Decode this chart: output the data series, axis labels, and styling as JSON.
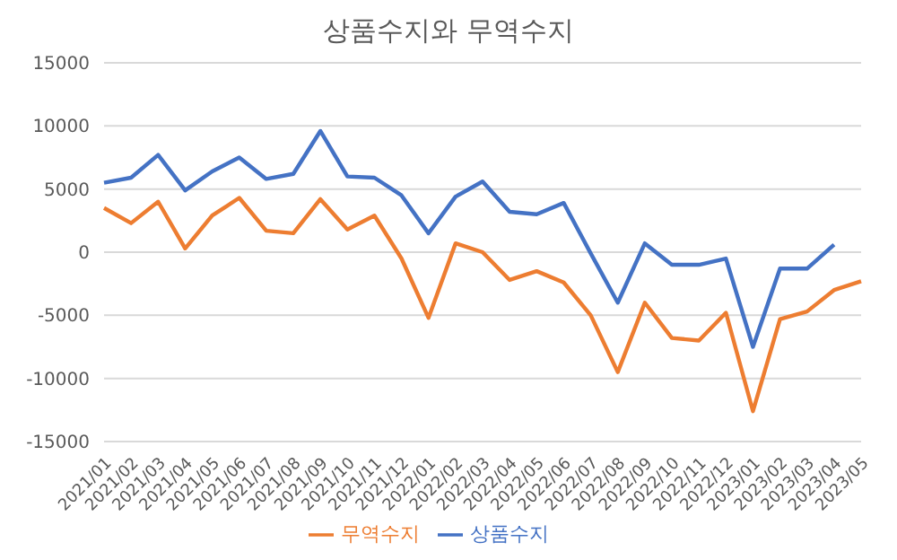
{
  "chart_data": {
    "type": "line",
    "title": "상품수지와 무역수지",
    "categories": [
      "2021/01",
      "2021/02",
      "2021/03",
      "2021/04",
      "2021/05",
      "2021/06",
      "2021/07",
      "2021/08",
      "2021/09",
      "2021/10",
      "2021/11",
      "2021/12",
      "2022/01",
      "2022/02",
      "2022/03",
      "2022/04",
      "2022/05",
      "2022/06",
      "2022/07",
      "2022/08",
      "2022/09",
      "2022/10",
      "2022/11",
      "2022/12",
      "2023/01",
      "2023/02",
      "2023/03",
      "2023/04",
      "2023/05"
    ],
    "series": [
      {
        "name": "상품수지",
        "color": "#4472c4",
        "values": [
          5500,
          5900,
          7700,
          4900,
          6400,
          7500,
          5800,
          6200,
          9600,
          6000,
          5900,
          4500,
          1500,
          4400,
          5600,
          3200,
          3000,
          3900,
          -100,
          -4000,
          700,
          -1000,
          -1000,
          -500,
          -7500,
          -1300,
          -1300,
          600,
          null
        ]
      },
      {
        "name": "무역수지",
        "color": "#ed7d31",
        "values": [
          3500,
          2300,
          4000,
          300,
          2900,
          4300,
          1700,
          1500,
          4200,
          1800,
          2900,
          -500,
          -5200,
          700,
          0,
          -2200,
          -1500,
          -2400,
          -5000,
          -9500,
          -4000,
          -6800,
          -7000,
          -4800,
          -12600,
          -5300,
          -4700,
          -3000,
          -2300
        ]
      }
    ],
    "ylim": [
      -15000,
      15000
    ],
    "yticks": [
      -15000,
      -10000,
      -5000,
      0,
      5000,
      10000,
      15000
    ],
    "grid": "y",
    "legend": "bottom",
    "marker": "none"
  }
}
